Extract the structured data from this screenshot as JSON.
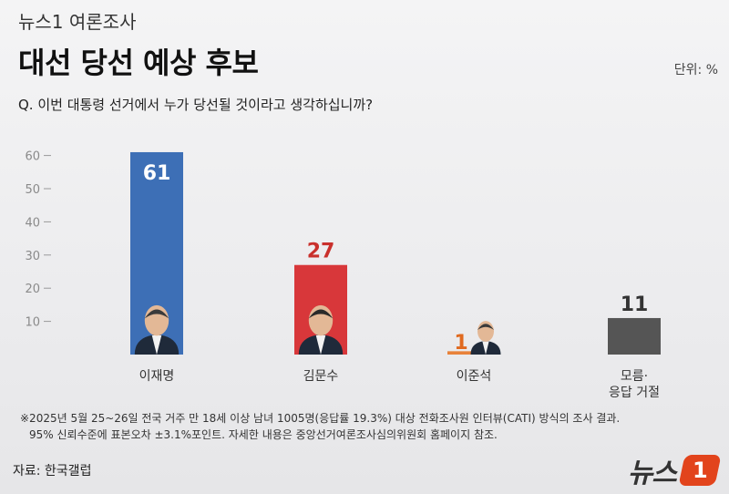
{
  "header": {
    "brand_line": "뉴스1 여론조사",
    "title": "대선 당선 예상 후보",
    "unit": "단위: %",
    "question": "Q. 이번 대통령 선거에서 누가 당선될 것이라고 생각하십니까?"
  },
  "chart_data": {
    "type": "bar",
    "categories": [
      "이재명",
      "김문수",
      "이준석",
      "모름·\n응답 거절"
    ],
    "values": [
      61,
      27,
      1,
      11
    ],
    "yticks": [
      10,
      20,
      30,
      40,
      50,
      60
    ],
    "ylim": [
      0,
      65
    ],
    "colors": [
      "#3d6fb6",
      "#d8373a",
      "#e8823a",
      "#555555"
    ],
    "label_colors": [
      "#ffffff",
      "#c9302c",
      "#e06a20",
      "#333333"
    ],
    "grid": false
  },
  "footnote": {
    "line1": "※2025년 5월 25~26일 전국 거주 만 18세 이상 남녀 1005명(응답률 19.3%) 대상 전화조사원 인터뷰(CATI) 방식의 조사 결과.",
    "line2": "95% 신뢰수준에 표본오차 ±3.1%포인트. 자세한 내용은 중앙선거여론조사심의위원회 홈페이지 참조."
  },
  "source": "자료: 한국갤럽",
  "logo": {
    "text": "뉴스",
    "badge": "1"
  }
}
